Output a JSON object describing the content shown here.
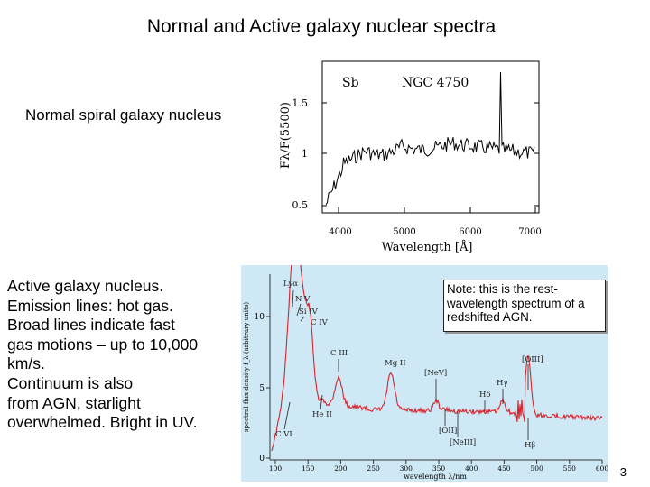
{
  "slide": {
    "title": "Normal and Active galaxy nuclear spectra",
    "normal_label": "Normal spiral galaxy nucleus",
    "active_lines": [
      "Active galaxy nucleus.",
      "Emission lines: hot gas.",
      "Broad lines indicate fast",
      "gas motions – up to 10,000",
      "km/s.",
      "Continuum is also",
      "from AGN, starlight",
      "overwhelmed.  Bright in UV."
    ],
    "note": "Note: this is the rest-wavelength spectrum of a redshifted AGN.",
    "slide_number": "3"
  },
  "normal_spectrum": {
    "galaxy_type": "Sb",
    "galaxy_name": "NGC 4750",
    "ylabel": "Fλ/F(5500)",
    "xlabel": "Wavelength [Å]",
    "x_ticks": [
      "4000",
      "5000",
      "6000",
      "7000"
    ],
    "y_ticks": [
      "1.5",
      "1",
      "0.5"
    ]
  },
  "agn_spectrum": {
    "ylabel": "spectral flux density f_λ (arbitrary units)",
    "xlabel": "wavelength λ/nm",
    "x_ticks": [
      "100",
      "150",
      "200",
      "250",
      "300",
      "350",
      "400",
      "450",
      "500",
      "550",
      "600"
    ],
    "y_ticks": [
      "10",
      "5",
      "0"
    ],
    "line_labels": [
      "Lyα",
      "N V",
      "Si IV",
      "C IV",
      "C III",
      "He II",
      "C VI",
      "Mg II",
      "[NeV]",
      "[OII]",
      "[NeIII]",
      "Hδ",
      "Hγ",
      "[OIII]",
      "Hβ"
    ]
  },
  "colors": {
    "agn_background": "#cfe8f5",
    "agn_curve": "#d8232a",
    "normal_curve": "#000000"
  }
}
